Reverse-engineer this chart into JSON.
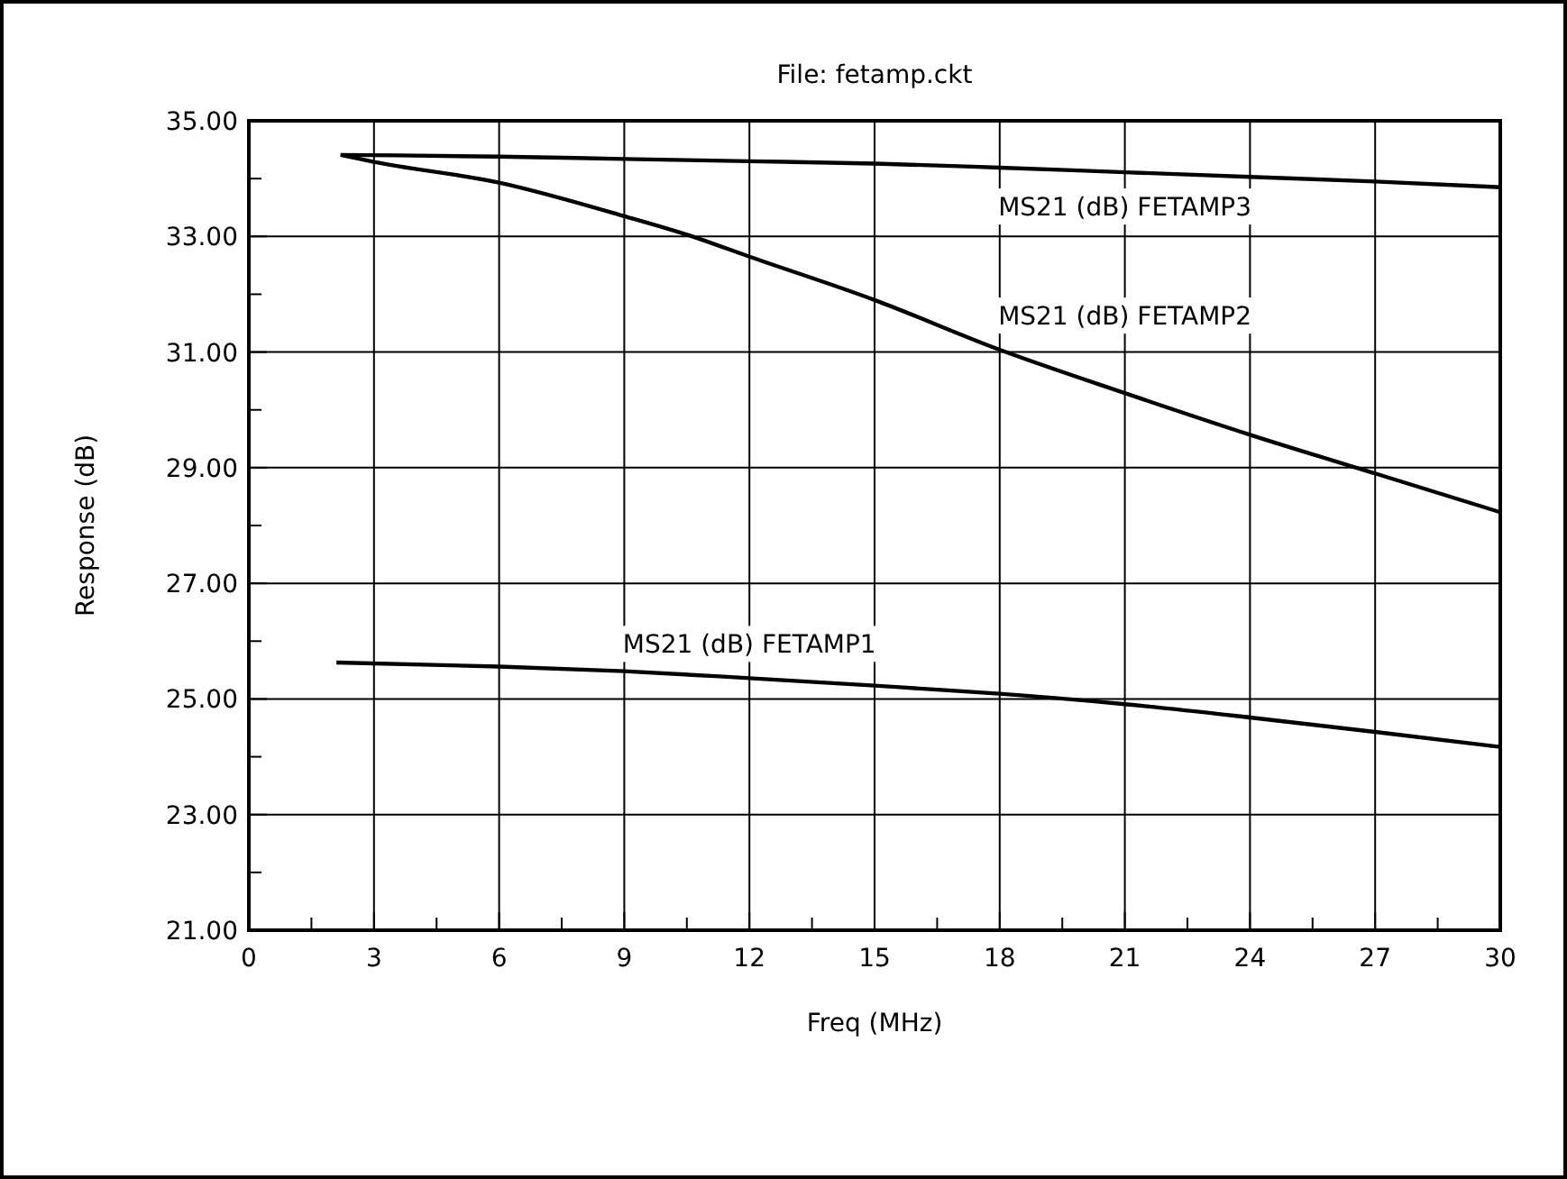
{
  "chart_data": {
    "type": "line",
    "title": "File: fetamp.ckt",
    "xlabel": "Freq (MHz)",
    "ylabel": "Response (dB)",
    "xlim": [
      0,
      30
    ],
    "ylim": [
      21,
      35
    ],
    "xticks": [
      0,
      {
        "value": 1.5,
        "label": null
      },
      3,
      {
        "value": 4.5,
        "label": null
      },
      6,
      {
        "value": 7.5,
        "label": null
      },
      9,
      {
        "value": 10.5,
        "label": null
      },
      12,
      {
        "value": 13.5,
        "label": null
      },
      15,
      {
        "value": 16.5,
        "label": null
      },
      18,
      {
        "value": 19.5,
        "label": null
      },
      21,
      {
        "value": 22.5,
        "label": null
      },
      24,
      {
        "value": 25.5,
        "label": null
      },
      27,
      {
        "value": 28.5,
        "label": null
      },
      30
    ],
    "yticks": [
      {
        "value": 21,
        "label": "21.00"
      },
      {
        "value": 22,
        "label": null
      },
      {
        "value": 23,
        "label": "23.00"
      },
      {
        "value": 24,
        "label": null
      },
      {
        "value": 25,
        "label": "25.00"
      },
      {
        "value": 26,
        "label": null
      },
      {
        "value": 27,
        "label": "27.00"
      },
      {
        "value": 28,
        "label": null
      },
      {
        "value": 29,
        "label": "29.00"
      },
      {
        "value": 30,
        "label": null
      },
      {
        "value": 31,
        "label": "31.00"
      },
      {
        "value": 32,
        "label": null
      },
      {
        "value": 33,
        "label": "33.00"
      },
      {
        "value": 34,
        "label": null
      },
      {
        "value": 35,
        "label": "35.00"
      }
    ],
    "grid": true,
    "marker": "none",
    "line_style": "solid",
    "series": [
      {
        "name": "MS21 (dB) FETAMP1",
        "color": "#000000",
        "x": [
          2.1,
          6,
          9,
          12,
          15,
          18,
          21,
          24,
          27,
          30
        ],
        "values": [
          25.63,
          25.56,
          25.48,
          25.36,
          25.23,
          25.09,
          24.91,
          24.68,
          24.43,
          24.17
        ]
      },
      {
        "name": "MS21 (dB) FETAMP2",
        "color": "#000000",
        "x": [
          2.2,
          3,
          6,
          9,
          10.5,
          12,
          15,
          18,
          21,
          24,
          27,
          30
        ],
        "values": [
          34.41,
          34.29,
          33.93,
          33.35,
          33.03,
          32.65,
          31.9,
          31.04,
          30.29,
          29.57,
          28.9,
          28.23
        ]
      },
      {
        "name": "MS21 (dB) FETAMP3",
        "color": "#000000",
        "x": [
          2.2,
          6,
          9,
          12,
          15,
          18,
          21,
          24,
          27,
          30
        ],
        "values": [
          34.41,
          34.38,
          34.34,
          34.3,
          34.26,
          34.19,
          34.11,
          34.03,
          33.95,
          33.85
        ]
      }
    ]
  }
}
